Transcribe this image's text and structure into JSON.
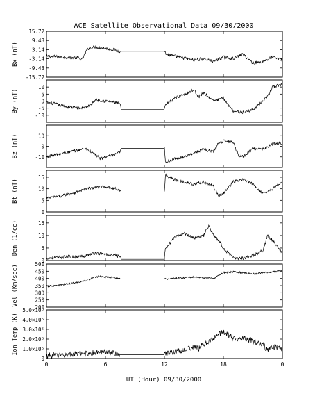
{
  "chart_data": {
    "type": "line",
    "title": "ACE Satellite Observational Data   09/30/2000",
    "xlabel": "UT (Hour)  09/30/2000",
    "x_ticks": [
      "0",
      "6",
      "12",
      "18",
      "0"
    ],
    "x_range": [
      0,
      24
    ],
    "panels": [
      {
        "id": "bx",
        "ylabel": "Bx (nT)",
        "ylim": [
          -15.72,
          15.72
        ],
        "yticks": [
          15.72,
          9.43,
          3.14,
          -3.14,
          -9.43,
          -15.72
        ],
        "ytick_labels": [
          "15.72",
          "9.43",
          "3.14",
          "-3.14",
          "-9.43",
          "-15.72"
        ],
        "series": [
          {
            "x": [
              0,
              2,
              3.2,
              3.6,
              4.2,
              5,
              6,
              6.5,
              7.5,
              12,
              12.2,
              13.5,
              15,
              16,
              17,
              18,
              19,
              20,
              21,
              22,
              23,
              24
            ],
            "y": [
              -1.5,
              -2,
              -2.5,
              -4,
              4,
              5,
              4,
              3.5,
              2.0,
              2.0,
              0,
              -2,
              -4,
              -3,
              -5,
              -2,
              -3,
              0,
              -6,
              -5,
              -2,
              -4
            ]
          }
        ]
      },
      {
        "id": "by",
        "ylabel": "By (nT)",
        "ylim": [
          -15,
          15
        ],
        "yticks": [
          10,
          5,
          0,
          -5,
          -10
        ],
        "ytick_labels": [
          "10",
          "5",
          "0",
          "-5",
          "-10"
        ],
        "series": [
          {
            "x": [
              0,
              1,
              2,
              3.5,
              4.5,
              5,
              6,
              7,
              7.5,
              7.6,
              12,
              12.1,
              13,
              14,
              15,
              15.5,
              16,
              17,
              18,
              19,
              20,
              21,
              22,
              22.5,
              23,
              24
            ],
            "y": [
              -1,
              -2,
              -4,
              -5,
              -3,
              1,
              0,
              -1,
              -2,
              -6,
              -6,
              -3,
              2,
              5,
              8,
              3,
              6,
              0,
              2,
              -7,
              -8,
              -6,
              0,
              3,
              10,
              12
            ]
          }
        ]
      },
      {
        "id": "bz",
        "ylabel": "Bz (nT)",
        "ylim": [
          -20,
          20
        ],
        "yticks": [
          10,
          0,
          -10
        ],
        "ytick_labels": [
          "10",
          "0",
          "-10"
        ],
        "series": [
          {
            "x": [
              0,
              1,
              2,
              3,
              4,
              5,
              5.5,
              6,
              7,
              7.5,
              7.6,
              12,
              12.1,
              13,
              14,
              15,
              16,
              17,
              17.5,
              18,
              19,
              19.5,
              20,
              21,
              22,
              23,
              24
            ],
            "y": [
              -10,
              -8,
              -6,
              -4,
              -2,
              -8,
              -12,
              -10,
              -8,
              -5,
              -2,
              -2,
              -15,
              -12,
              -10,
              -6,
              -3,
              -5,
              3,
              5,
              4,
              -8,
              -10,
              -2,
              -3,
              2,
              3
            ]
          }
        ]
      },
      {
        "id": "bt",
        "ylabel": "Bt (nT)",
        "ylim": [
          0,
          18
        ],
        "yticks": [
          15,
          10,
          5,
          0
        ],
        "ytick_labels": [
          "15",
          "10",
          "5",
          "0"
        ],
        "series": [
          {
            "x": [
              0,
              1,
              2,
              3,
              4,
              5,
              6,
              7,
              7.5,
              7.6,
              12,
              12.1,
              13,
              14,
              15,
              16,
              17,
              17.5,
              18,
              19,
              20,
              21,
              22,
              23,
              24
            ],
            "y": [
              6,
              6.5,
              7.5,
              8.5,
              10,
              10.5,
              11,
              10,
              9,
              8.5,
              8.5,
              16,
              14,
              13,
              12,
              13,
              11,
              7,
              8,
              13,
              14,
              12,
              8,
              10,
              13
            ]
          }
        ]
      },
      {
        "id": "den",
        "ylabel": "Den (1/cc)",
        "ylim": [
          0,
          18
        ],
        "yticks": [
          15,
          10,
          5,
          0
        ],
        "ytick_labels": [
          "15",
          "10",
          "5",
          "0"
        ],
        "series": [
          {
            "x": [
              0,
              1,
              2,
              3,
              4,
              5,
              6,
              7,
              7.5,
              7.6,
              12,
              12.1,
              13,
              14,
              15,
              16,
              16.5,
              17,
              17.5,
              18,
              19,
              20,
              21,
              22,
              22.5,
              23,
              24
            ],
            "y": [
              1,
              1.2,
              1.5,
              1.5,
              2,
              3,
              2.5,
              2,
              1.5,
              0.5,
              0.5,
              5,
              9,
              11,
              9,
              10,
              14,
              10,
              8,
              5,
              1,
              1,
              2,
              4,
              10,
              8,
              3
            ]
          }
        ]
      },
      {
        "id": "vel",
        "ylabel": "Vel (Km/sec)",
        "ylim": [
          200,
          500
        ],
        "yticks": [
          500,
          450,
          400,
          350,
          300,
          250,
          200
        ],
        "ytick_labels": [
          "500",
          "450",
          "400",
          "350",
          "300",
          "250",
          "200"
        ],
        "series": [
          {
            "x": [
              0,
              1,
              2,
              3,
              4,
              5,
              5.5,
              6,
              7,
              7.5,
              12,
              13,
              14,
              15,
              16,
              17,
              17.5,
              18,
              19,
              20,
              21,
              22,
              23,
              24
            ],
            "y": [
              345,
              350,
              360,
              370,
              385,
              410,
              415,
              410,
              405,
              395,
              395,
              400,
              405,
              410,
              405,
              400,
              420,
              440,
              445,
              440,
              430,
              440,
              445,
              455
            ]
          }
        ]
      },
      {
        "id": "temp",
        "ylabel": "Ion Temp (K)",
        "ylim": [
          0,
          500000
        ],
        "yticks": [
          500000,
          400000,
          300000,
          200000,
          100000,
          0
        ],
        "ytick_labels": [
          "5.0×10⁵",
          "4.0×10⁵",
          "3.0×10⁵",
          "2.0×10⁵",
          "1.0×10⁵",
          "0"
        ],
        "series": [
          {
            "x": [
              0,
              1,
              2,
              3,
              4,
              5,
              6,
              7,
              7.5,
              12,
              13,
              14,
              15,
              15.5,
              16,
              17,
              17.5,
              18,
              19,
              20,
              21,
              22,
              22.5,
              23,
              24
            ],
            "y": [
              30000,
              35000,
              40000,
              45000,
              50000,
              60000,
              70000,
              60000,
              40000,
              40000,
              70000,
              90000,
              120000,
              100000,
              150000,
              200000,
              250000,
              280000,
              200000,
              220000,
              180000,
              150000,
              80000,
              120000,
              110000
            ]
          }
        ]
      }
    ]
  }
}
